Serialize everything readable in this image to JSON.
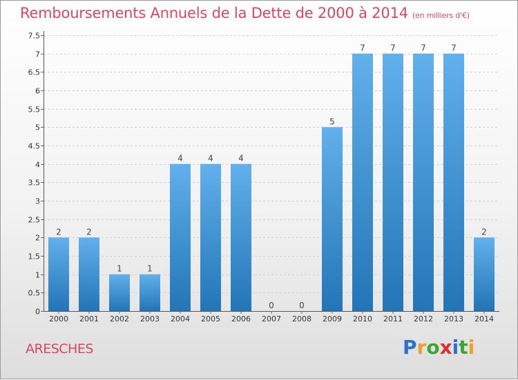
{
  "title": "Remboursements Annuels de la Dette de 2000 à 2014",
  "title_unit": "(en milliers d'€)",
  "place": "ARESCHES",
  "logo": {
    "text": "Proxiti",
    "letters": [
      {
        "ch": "P",
        "color": "#2f6fd0"
      },
      {
        "ch": "r",
        "color": "#f0a020"
      },
      {
        "ch": "o",
        "color": "#3aa63a"
      },
      {
        "ch": "x",
        "color": "#e03030"
      },
      {
        "ch": "i",
        "color": "#2f6fd0"
      },
      {
        "ch": "t",
        "color": "#3aa63a"
      },
      {
        "ch": "i",
        "color": "#f0a020"
      }
    ]
  },
  "colors": {
    "title": "#d9475f",
    "bar_light": "#62b0ec",
    "bar_dark": "#2275b6"
  },
  "chart_data": {
    "type": "bar",
    "categories": [
      "2000",
      "2001",
      "2002",
      "2003",
      "2004",
      "2005",
      "2006",
      "2007",
      "2008",
      "2009",
      "2010",
      "2011",
      "2012",
      "2013",
      "2014"
    ],
    "values": [
      2,
      2,
      1,
      1,
      4,
      4,
      4,
      0,
      0,
      5,
      7,
      7,
      7,
      7,
      2
    ],
    "ylim": [
      0,
      7.5
    ],
    "yticks": [
      "0",
      "0.5",
      "1",
      "1.5",
      "2",
      "2.5",
      "3",
      "3.5",
      "4",
      "4.5",
      "5",
      "5.5",
      "6",
      "6.5",
      "7",
      "7.5"
    ],
    "grid": true
  }
}
